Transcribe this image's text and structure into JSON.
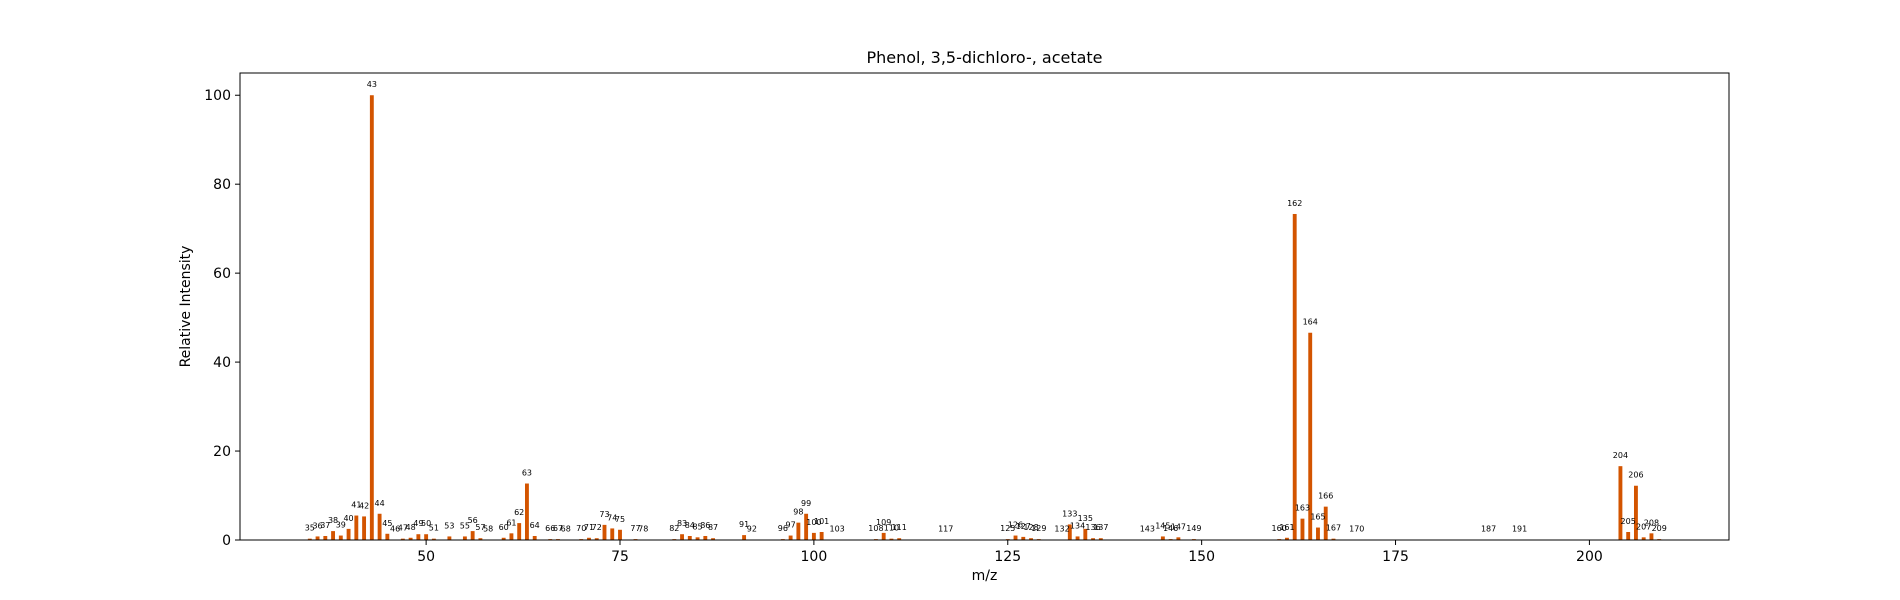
{
  "chart_data": {
    "type": "bar",
    "title": "Phenol, 3,5-dichloro-, acetate",
    "xlabel": "m/z",
    "ylabel": "Relative Intensity",
    "xlim": [
      26,
      218
    ],
    "ylim": [
      0,
      105
    ],
    "xticks": [
      50,
      75,
      100,
      125,
      150,
      175,
      200
    ],
    "yticks": [
      0,
      20,
      40,
      60,
      80,
      100
    ],
    "bar_color": "#d35400",
    "grid": false,
    "legend": false,
    "peaks": [
      {
        "mz": 35,
        "intensity": 0.3
      },
      {
        "mz": 36,
        "intensity": 0.8
      },
      {
        "mz": 37,
        "intensity": 0.9
      },
      {
        "mz": 38,
        "intensity": 2.0
      },
      {
        "mz": 39,
        "intensity": 1.0
      },
      {
        "mz": 40,
        "intensity": 2.5
      },
      {
        "mz": 41,
        "intensity": 5.5
      },
      {
        "mz": 42,
        "intensity": 5.3
      },
      {
        "mz": 43,
        "intensity": 100
      },
      {
        "mz": 44,
        "intensity": 5.9
      },
      {
        "mz": 45,
        "intensity": 1.4
      },
      {
        "mz": 46,
        "intensity": 0.1
      },
      {
        "mz": 47,
        "intensity": 0.3
      },
      {
        "mz": 48,
        "intensity": 0.5
      },
      {
        "mz": 49,
        "intensity": 1.3
      },
      {
        "mz": 50,
        "intensity": 1.3
      },
      {
        "mz": 51,
        "intensity": 0.3
      },
      {
        "mz": 53,
        "intensity": 0.8
      },
      {
        "mz": 55,
        "intensity": 0.8
      },
      {
        "mz": 56,
        "intensity": 2.0
      },
      {
        "mz": 57,
        "intensity": 0.4
      },
      {
        "mz": 58,
        "intensity": 0.1
      },
      {
        "mz": 60,
        "intensity": 0.5
      },
      {
        "mz": 61,
        "intensity": 1.5
      },
      {
        "mz": 62,
        "intensity": 3.8
      },
      {
        "mz": 63,
        "intensity": 12.7
      },
      {
        "mz": 64,
        "intensity": 0.9
      },
      {
        "mz": 66,
        "intensity": 0.2
      },
      {
        "mz": 67,
        "intensity": 0.2
      },
      {
        "mz": 68,
        "intensity": 0.1
      },
      {
        "mz": 70,
        "intensity": 0.2
      },
      {
        "mz": 71,
        "intensity": 0.5
      },
      {
        "mz": 72,
        "intensity": 0.4
      },
      {
        "mz": 73,
        "intensity": 3.4
      },
      {
        "mz": 74,
        "intensity": 2.6
      },
      {
        "mz": 75,
        "intensity": 2.3
      },
      {
        "mz": 77,
        "intensity": 0.2
      },
      {
        "mz": 78,
        "intensity": 0.1
      },
      {
        "mz": 82,
        "intensity": 0.2
      },
      {
        "mz": 83,
        "intensity": 1.3
      },
      {
        "mz": 84,
        "intensity": 0.9
      },
      {
        "mz": 85,
        "intensity": 0.6
      },
      {
        "mz": 86,
        "intensity": 0.9
      },
      {
        "mz": 87,
        "intensity": 0.4
      },
      {
        "mz": 91,
        "intensity": 1.1
      },
      {
        "mz": 92,
        "intensity": 0.1
      },
      {
        "mz": 96,
        "intensity": 0.2
      },
      {
        "mz": 97,
        "intensity": 1.0
      },
      {
        "mz": 98,
        "intensity": 3.9
      },
      {
        "mz": 99,
        "intensity": 5.9
      },
      {
        "mz": 100,
        "intensity": 1.6
      },
      {
        "mz": 101,
        "intensity": 1.8
      },
      {
        "mz": 103,
        "intensity": 0.1
      },
      {
        "mz": 108,
        "intensity": 0.2
      },
      {
        "mz": 109,
        "intensity": 1.6
      },
      {
        "mz": 110,
        "intensity": 0.3
      },
      {
        "mz": 111,
        "intensity": 0.4
      },
      {
        "mz": 117,
        "intensity": 0.1
      },
      {
        "mz": 125,
        "intensity": 0.2
      },
      {
        "mz": 126,
        "intensity": 1.0
      },
      {
        "mz": 127,
        "intensity": 0.7
      },
      {
        "mz": 128,
        "intensity": 0.4
      },
      {
        "mz": 129,
        "intensity": 0.2
      },
      {
        "mz": 132,
        "intensity": 0.1
      },
      {
        "mz": 133,
        "intensity": 3.5
      },
      {
        "mz": 134,
        "intensity": 0.8
      },
      {
        "mz": 135,
        "intensity": 2.5
      },
      {
        "mz": 136,
        "intensity": 0.4
      },
      {
        "mz": 137,
        "intensity": 0.4
      },
      {
        "mz": 143,
        "intensity": 0.1
      },
      {
        "mz": 145,
        "intensity": 0.8
      },
      {
        "mz": 146,
        "intensity": 0.2
      },
      {
        "mz": 147,
        "intensity": 0.6
      },
      {
        "mz": 149,
        "intensity": 0.2
      },
      {
        "mz": 160,
        "intensity": 0.2
      },
      {
        "mz": 161,
        "intensity": 0.5
      },
      {
        "mz": 162,
        "intensity": 73.3
      },
      {
        "mz": 163,
        "intensity": 4.8
      },
      {
        "mz": 164,
        "intensity": 46.6
      },
      {
        "mz": 165,
        "intensity": 2.8
      },
      {
        "mz": 166,
        "intensity": 7.5
      },
      {
        "mz": 167,
        "intensity": 0.3
      },
      {
        "mz": 170,
        "intensity": 0.1
      },
      {
        "mz": 187,
        "intensity": 0.1
      },
      {
        "mz": 191,
        "intensity": 0.1
      },
      {
        "mz": 204,
        "intensity": 16.6
      },
      {
        "mz": 205,
        "intensity": 1.8
      },
      {
        "mz": 206,
        "intensity": 12.2
      },
      {
        "mz": 207,
        "intensity": 0.6
      },
      {
        "mz": 208,
        "intensity": 1.5
      },
      {
        "mz": 209,
        "intensity": 0.2
      }
    ]
  }
}
